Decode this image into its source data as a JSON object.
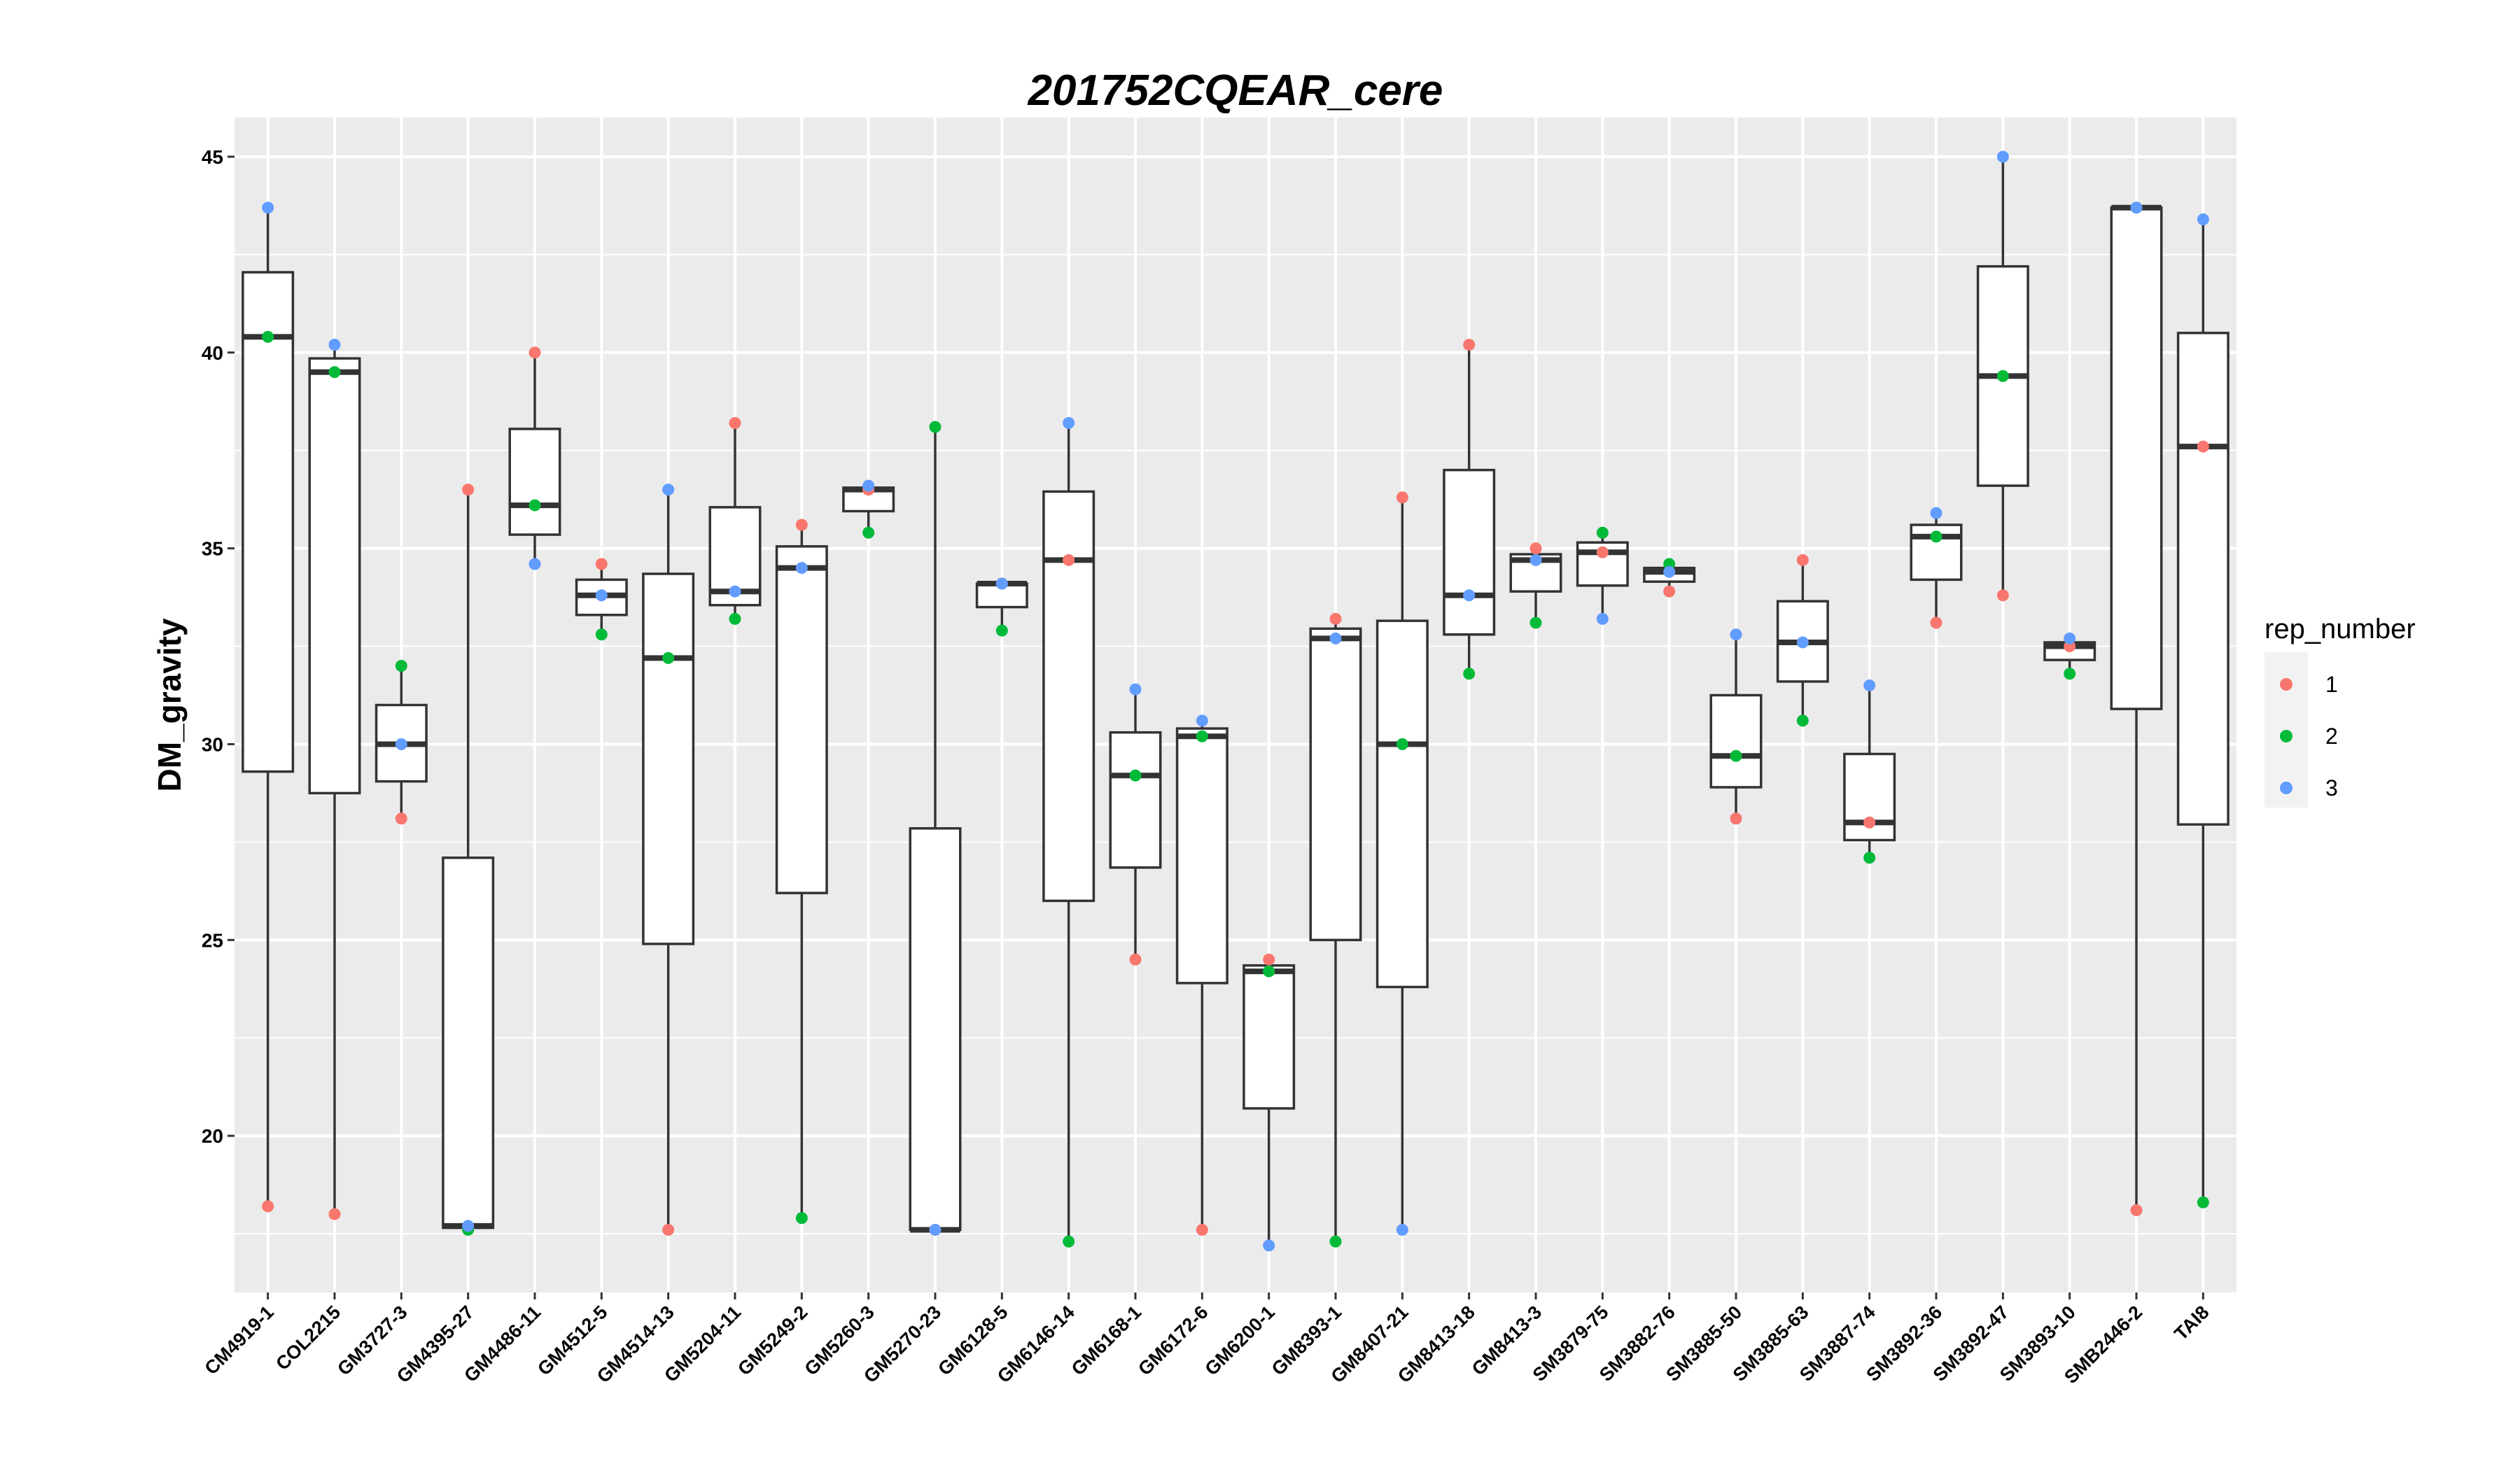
{
  "chart_data": {
    "type": "box",
    "title": "201752CQEAR_cere",
    "xlabel": "",
    "ylabel": "DM_gravity",
    "ylim": [
      16,
      46
    ],
    "yticks": [
      20,
      25,
      30,
      35,
      40,
      45
    ],
    "grid": true,
    "legend": {
      "title": "rep_number",
      "placement": "right",
      "entries": [
        {
          "label": "1",
          "color": "#F8766D"
        },
        {
          "label": "2",
          "color": "#00BA38"
        },
        {
          "label": "3",
          "color": "#619CFF"
        }
      ]
    },
    "categories": [
      "CM4919-1",
      "COL2215",
      "GM3727-3",
      "GM4395-27",
      "GM4486-11",
      "GM4512-5",
      "GM4514-13",
      "GM5204-11",
      "GM5249-2",
      "GM5260-3",
      "GM5270-23",
      "GM6128-5",
      "GM6146-14",
      "GM6168-1",
      "GM6172-6",
      "GM6200-1",
      "GM8393-1",
      "GM8407-21",
      "GM8413-18",
      "GM8413-3",
      "SM3879-75",
      "SM3882-76",
      "SM3885-50",
      "SM3885-63",
      "SM3887-74",
      "SM3892-36",
      "SM3892-47",
      "SM3893-10",
      "SMB2446-2",
      "TAI8"
    ],
    "series": [
      {
        "name": "1",
        "values": [
          18.2,
          18.0,
          28.1,
          36.5,
          40.0,
          34.6,
          17.6,
          38.2,
          35.6,
          36.5,
          17.6,
          34.1,
          34.7,
          24.5,
          17.6,
          24.5,
          33.2,
          36.3,
          40.2,
          35.0,
          34.9,
          33.9,
          28.1,
          34.7,
          28.0,
          33.1,
          33.8,
          32.5,
          18.1,
          37.6
        ]
      },
      {
        "name": "2",
        "values": [
          40.4,
          39.5,
          32.0,
          17.6,
          36.1,
          32.8,
          32.2,
          33.2,
          17.9,
          35.4,
          38.1,
          32.9,
          17.3,
          29.2,
          30.2,
          24.2,
          17.3,
          30.0,
          31.8,
          33.1,
          35.4,
          34.6,
          29.7,
          30.6,
          27.1,
          35.3,
          39.4,
          31.8,
          43.7,
          18.3
        ]
      },
      {
        "name": "3",
        "values": [
          43.7,
          40.2,
          30.0,
          17.7,
          34.6,
          33.8,
          36.5,
          33.9,
          34.5,
          36.6,
          17.6,
          34.1,
          38.2,
          31.4,
          30.6,
          17.2,
          32.7,
          17.6,
          33.8,
          34.7,
          33.2,
          34.4,
          32.8,
          32.6,
          31.5,
          35.9,
          45.0,
          32.7,
          43.7,
          43.4
        ]
      }
    ]
  }
}
